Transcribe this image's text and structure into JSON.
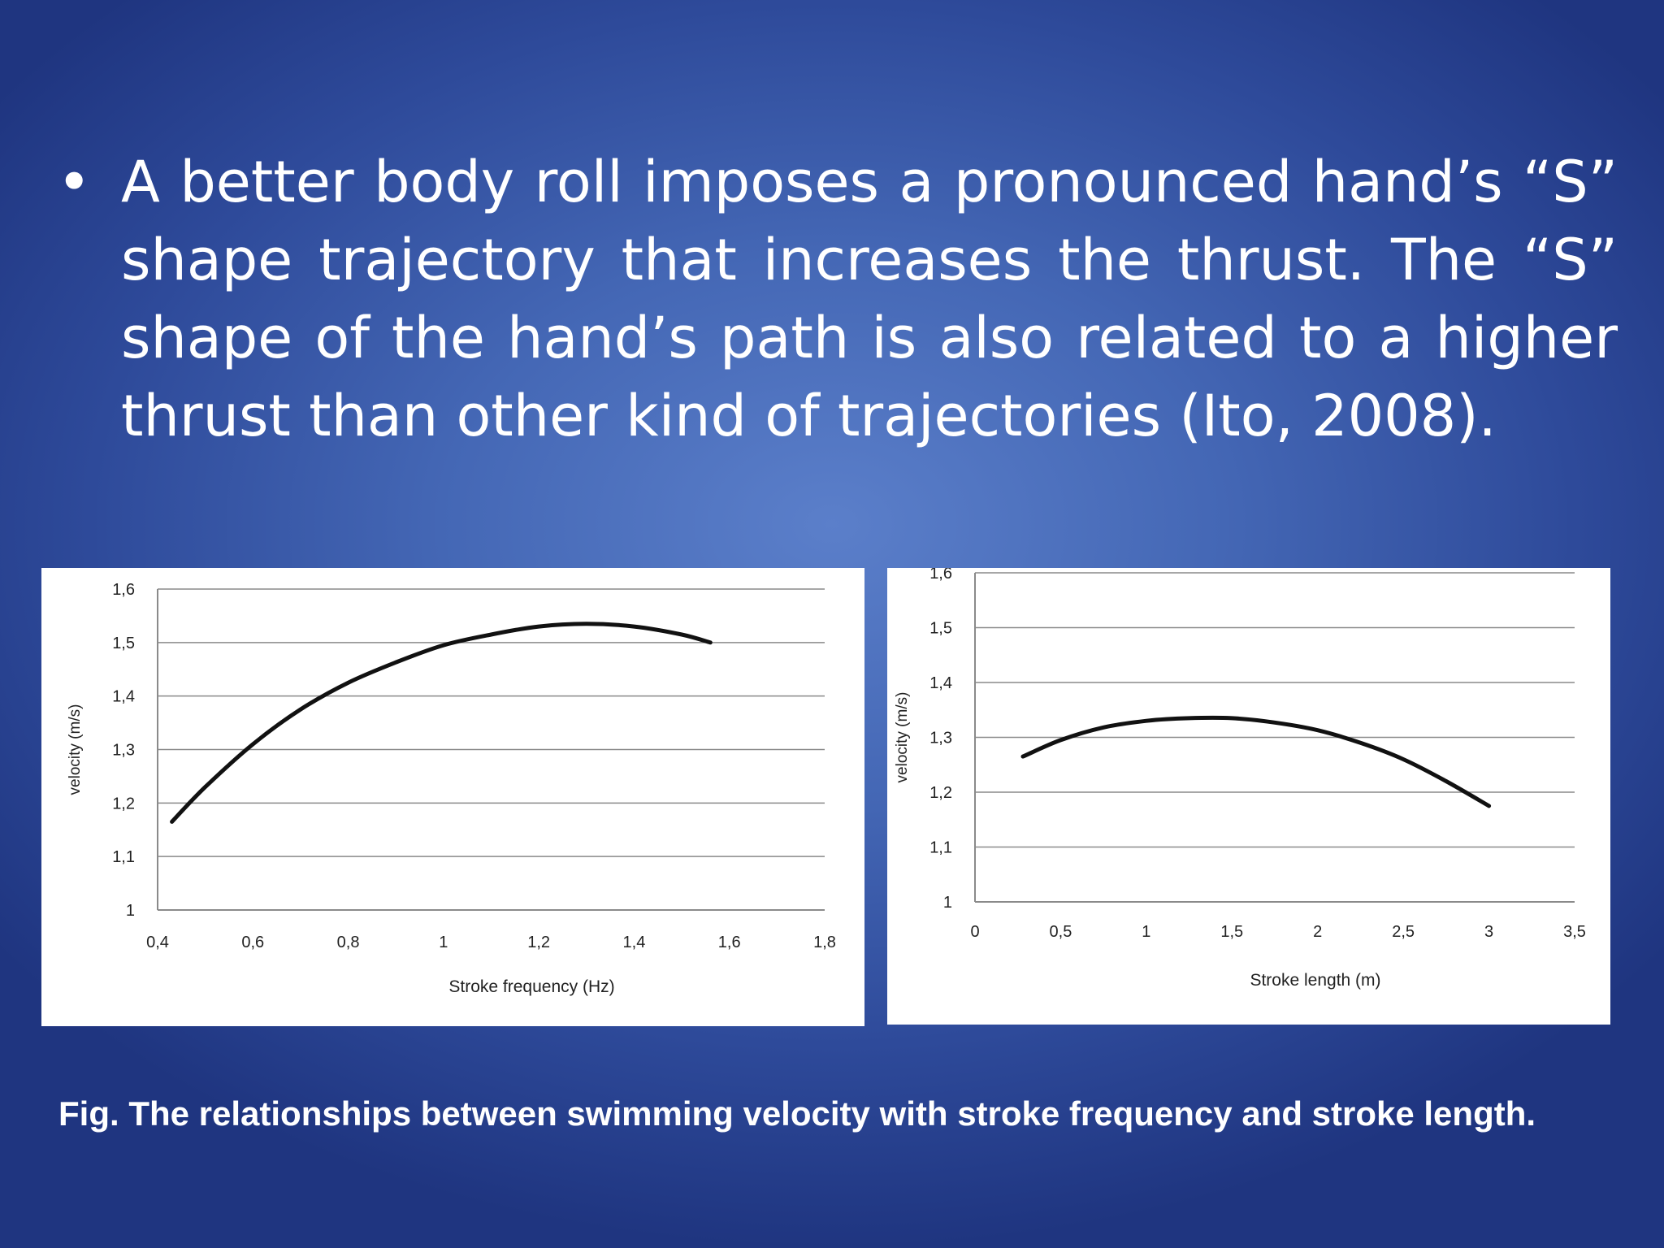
{
  "slide": {
    "bullet_symbol": "•",
    "body_text": "A better body roll imposes a pronounced hand’s “S” shape trajectory that increases the thrust. The “S” shape of the hand’s path is also related to a higher thrust than other kind of trajectories (Ito, 2008).",
    "caption": "Fig.  The relationships between swimming velocity with stroke frequency and stroke length."
  },
  "chart_data": [
    {
      "type": "line",
      "xlabel": "Stroke frequency (Hz)",
      "ylabel": "velocity (m/s)",
      "xlim": [
        0.4,
        1.8
      ],
      "ylim": [
        1,
        1.6
      ],
      "x_ticks": [
        "0,4",
        "0,6",
        "0,8",
        "1",
        "1,2",
        "1,4",
        "1,6",
        "1,8"
      ],
      "y_ticks": [
        "1",
        "1,1",
        "1,2",
        "1,3",
        "1,4",
        "1,5",
        "1,6"
      ],
      "grid": true,
      "line_color": "#111111",
      "series": [
        {
          "x": [
            0.43,
            0.5,
            0.6,
            0.7,
            0.8,
            0.9,
            1.0,
            1.1,
            1.2,
            1.3,
            1.4,
            1.5,
            1.56
          ],
          "values": [
            1.165,
            1.23,
            1.31,
            1.375,
            1.425,
            1.463,
            1.495,
            1.515,
            1.53,
            1.535,
            1.53,
            1.515,
            1.5
          ]
        }
      ]
    },
    {
      "type": "line",
      "xlabel": "Stroke length (m)",
      "ylabel": "velocity (m/s)",
      "xlim": [
        0,
        3.5
      ],
      "ylim": [
        1,
        1.6
      ],
      "x_ticks": [
        "0",
        "0,5",
        "1",
        "1,5",
        "2",
        "2,5",
        "3",
        "3,5"
      ],
      "y_ticks": [
        "1",
        "1,1",
        "1,2",
        "1,3",
        "1,4",
        "1,5",
        "1,6"
      ],
      "grid": true,
      "line_color": "#111111",
      "series": [
        {
          "x": [
            0.28,
            0.5,
            0.75,
            1.0,
            1.25,
            1.5,
            1.75,
            2.0,
            2.25,
            2.5,
            2.75,
            3.0
          ],
          "values": [
            1.265,
            1.295,
            1.318,
            1.33,
            1.335,
            1.335,
            1.327,
            1.313,
            1.29,
            1.26,
            1.22,
            1.175
          ]
        }
      ]
    }
  ]
}
